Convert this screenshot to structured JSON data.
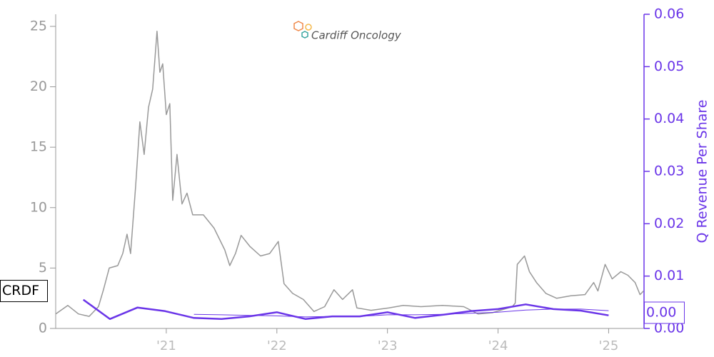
{
  "chart_data": {
    "type": "line",
    "logo_text": "Cardiff Oncology",
    "y2_label": "Q Revenue Per Share",
    "xlim": [
      2020.0,
      2025.32
    ],
    "xticks": [
      {
        "value": 2021,
        "label": "'21"
      },
      {
        "value": 2022,
        "label": "'22"
      },
      {
        "value": 2023,
        "label": "'23"
      },
      {
        "value": 2024,
        "label": "'24"
      },
      {
        "value": 2025,
        "label": "'25"
      }
    ],
    "ylim": [
      0,
      26
    ],
    "yticks": [
      0,
      5,
      10,
      15,
      20,
      25
    ],
    "y2lim": [
      0,
      0.06
    ],
    "y2ticks": [
      {
        "value": 0,
        "label": "0.00"
      },
      0.01,
      0.02,
      0.03,
      0.04,
      0.05,
      0.06
    ],
    "series": [
      {
        "color": "#999999",
        "line_width": 1.5,
        "x": [
          2020.0,
          2020.11,
          2020.206,
          2020.303,
          2020.387,
          2020.432,
          2020.484,
          2020.561,
          2020.606,
          2020.645,
          2020.677,
          2020.723,
          2020.761,
          2020.8,
          2020.839,
          2020.877,
          2020.916,
          2020.942,
          2020.968,
          2021.0,
          2021.032,
          2021.058,
          2021.097,
          2021.142,
          2021.187,
          2021.239,
          2021.335,
          2021.432,
          2021.529,
          2021.574,
          2021.626,
          2021.677,
          2021.755,
          2021.852,
          2021.935,
          2022.013,
          2022.065,
          2022.142,
          2022.239,
          2022.335,
          2022.432,
          2022.516,
          2022.594,
          2022.684,
          2022.723,
          2022.852,
          2023.013,
          2023.142,
          2023.303,
          2023.497,
          2023.69,
          2023.819,
          2023.948,
          2024.129,
          2024.155,
          2024.174,
          2024.239,
          2024.284,
          2024.348,
          2024.432,
          2024.529,
          2024.658,
          2024.787,
          2024.865,
          2024.903,
          2024.968,
          2025.032,
          2025.11,
          2025.174,
          2025.239,
          2025.284,
          2025.316
        ],
        "values": [
          1.2,
          1.9,
          1.2,
          1.0,
          1.8,
          3.2,
          5.0,
          5.2,
          6.2,
          7.8,
          6.2,
          11.8,
          17.1,
          14.4,
          18.3,
          19.8,
          24.6,
          21.2,
          21.9,
          17.7,
          18.6,
          10.6,
          14.4,
          10.3,
          11.2,
          9.4,
          9.4,
          8.3,
          6.5,
          5.2,
          6.2,
          7.7,
          6.8,
          6.0,
          6.2,
          7.2,
          3.7,
          2.9,
          2.4,
          1.4,
          1.8,
          3.2,
          2.4,
          3.2,
          1.7,
          1.5,
          1.7,
          1.9,
          1.8,
          1.9,
          1.8,
          1.2,
          1.3,
          1.8,
          2.1,
          5.3,
          6.0,
          4.7,
          3.8,
          2.9,
          2.5,
          2.7,
          2.8,
          3.8,
          3.1,
          5.3,
          4.1,
          4.7,
          4.4,
          3.8,
          2.8,
          3.1
        ]
      },
      {
        "color": "#6a35e8",
        "line_width": 2.5,
        "axis": "y2",
        "x": [
          2020.25,
          2020.49,
          2020.74,
          2020.99,
          2021.25,
          2021.5,
          2021.75,
          2022.0,
          2022.26,
          2022.5,
          2022.75,
          2023.0,
          2023.25,
          2023.5,
          2023.75,
          2024.0,
          2024.25,
          2024.5,
          2024.75,
          2025.0
        ],
        "values": [
          0.0055,
          0.0018,
          0.004,
          0.0033,
          0.002,
          0.0018,
          0.0023,
          0.0031,
          0.0018,
          0.0023,
          0.0023,
          0.0031,
          0.002,
          0.0026,
          0.0033,
          0.0037,
          0.0046,
          0.0037,
          0.0034,
          0.0025
        ]
      },
      {
        "color": "#6a35e8",
        "line_width": 1,
        "axis": "y2",
        "x": [
          2021.25,
          2021.5,
          2021.75,
          2022.0,
          2022.26,
          2022.5,
          2022.75,
          2023.0,
          2023.25,
          2023.5,
          2023.75,
          2024.0,
          2024.25,
          2024.5,
          2024.75,
          2025.0
        ],
        "values": [
          0.0027,
          0.0026,
          0.0025,
          0.0024,
          0.0022,
          0.0023,
          0.0023,
          0.0026,
          0.0026,
          0.0027,
          0.0029,
          0.0031,
          0.0035,
          0.0037,
          0.0037,
          0.0034
        ]
      }
    ],
    "annotations": [
      {
        "text": "CRDF",
        "y": 3.1
      },
      {
        "text": "0.00",
        "y": 0.003,
        "axis": "y2"
      }
    ]
  }
}
